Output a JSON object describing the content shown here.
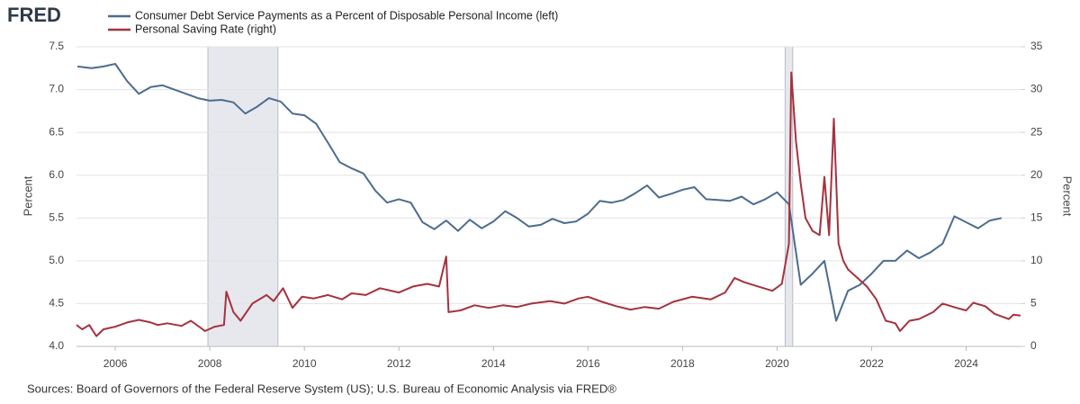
{
  "chart_data": {
    "type": "line",
    "logo": "FRED",
    "source": "Sources: Board of Governors of the Federal Reserve System (US); U.S. Bureau of Economic Analysis via FRED®",
    "y_label": "Percent",
    "y2_label": "Percent",
    "xlim": [
      2005.18,
      2025.17
    ],
    "xticks": [
      2006,
      2008,
      2010,
      2012,
      2014,
      2016,
      2018,
      2020,
      2022,
      2024
    ],
    "ylim": [
      4.0,
      7.5
    ],
    "yticks": [
      {
        "value": 4.0,
        "label": "4.0"
      },
      4.5,
      {
        "value": 5.0,
        "label": "5.0"
      },
      5.5,
      {
        "value": 6.0,
        "label": "6.0"
      },
      6.5,
      {
        "value": 7.0,
        "label": "7.0"
      },
      7.5
    ],
    "y2lim": [
      0,
      35
    ],
    "y2ticks": [
      0,
      5,
      10,
      15,
      20,
      25,
      30,
      35
    ],
    "grid": true,
    "recessions": [
      [
        2007.96,
        2009.44
      ],
      [
        2020.17,
        2020.33
      ]
    ],
    "recession_color": "#e6e8ee",
    "series": [
      {
        "name": "Consumer Debt Service Payments as a Percent of Disposable Personal Income (left)",
        "color": "#4d6c8f",
        "axis": "y",
        "x": [
          2005.2,
          2005.5,
          2005.75,
          2006.0,
          2006.25,
          2006.5,
          2006.75,
          2007.0,
          2007.25,
          2007.5,
          2007.75,
          2008.0,
          2008.25,
          2008.5,
          2008.75,
          2009.0,
          2009.25,
          2009.5,
          2009.75,
          2010.0,
          2010.25,
          2010.5,
          2010.75,
          2011.0,
          2011.25,
          2011.5,
          2011.75,
          2012.0,
          2012.25,
          2012.5,
          2012.75,
          2013.0,
          2013.25,
          2013.5,
          2013.75,
          2014.0,
          2014.25,
          2014.5,
          2014.75,
          2015.0,
          2015.25,
          2015.5,
          2015.75,
          2016.0,
          2016.25,
          2016.5,
          2016.75,
          2017.0,
          2017.25,
          2017.5,
          2017.75,
          2018.0,
          2018.25,
          2018.5,
          2018.75,
          2019.0,
          2019.25,
          2019.5,
          2019.75,
          2020.0,
          2020.25,
          2020.5,
          2020.75,
          2021.0,
          2021.25,
          2021.5,
          2021.75,
          2022.0,
          2022.25,
          2022.5,
          2022.75,
          2023.0,
          2023.25,
          2023.5,
          2023.75,
          2024.0,
          2024.25,
          2024.5,
          2024.75
        ],
        "values": [
          7.27,
          7.25,
          7.27,
          7.3,
          7.1,
          6.95,
          7.03,
          7.05,
          7.0,
          6.95,
          6.9,
          6.87,
          6.88,
          6.85,
          6.72,
          6.8,
          6.9,
          6.86,
          6.72,
          6.7,
          6.6,
          6.38,
          6.15,
          6.08,
          6.02,
          5.82,
          5.68,
          5.72,
          5.68,
          5.45,
          5.37,
          5.47,
          5.35,
          5.48,
          5.38,
          5.46,
          5.58,
          5.5,
          5.4,
          5.42,
          5.49,
          5.44,
          5.46,
          5.55,
          5.7,
          5.68,
          5.71,
          5.79,
          5.88,
          5.74,
          5.78,
          5.83,
          5.86,
          5.72,
          5.71,
          5.7,
          5.75,
          5.66,
          5.72,
          5.8,
          5.66,
          4.72,
          4.85,
          5.0,
          4.3,
          4.65,
          4.72,
          4.85,
          5.0,
          5.0,
          5.12,
          5.03,
          5.1,
          5.2,
          5.52,
          5.45,
          5.38,
          5.47,
          5.5
        ]
      },
      {
        "name": "Personal Saving Rate (right)",
        "color": "#a5323f",
        "axis": "y2",
        "x": [
          2005.18,
          2005.3,
          2005.45,
          2005.6,
          2005.75,
          2006.0,
          2006.25,
          2006.5,
          2006.75,
          2006.9,
          2007.1,
          2007.4,
          2007.6,
          2007.9,
          2008.1,
          2008.3,
          2008.35,
          2008.5,
          2008.65,
          2008.9,
          2009.2,
          2009.35,
          2009.55,
          2009.75,
          2009.95,
          2010.2,
          2010.5,
          2010.8,
          2011.0,
          2011.3,
          2011.6,
          2012.0,
          2012.3,
          2012.6,
          2012.85,
          2013.0,
          2013.05,
          2013.3,
          2013.6,
          2013.9,
          2014.2,
          2014.5,
          2014.8,
          2015.2,
          2015.5,
          2015.8,
          2016.0,
          2016.3,
          2016.6,
          2016.9,
          2017.2,
          2017.5,
          2017.8,
          2018.2,
          2018.6,
          2018.9,
          2019.1,
          2019.3,
          2019.6,
          2019.9,
          2020.1,
          2020.25,
          2020.3,
          2020.4,
          2020.5,
          2020.6,
          2020.75,
          2020.9,
          2021.0,
          2021.1,
          2021.2,
          2021.3,
          2021.4,
          2021.5,
          2021.7,
          2021.9,
          2022.1,
          2022.3,
          2022.5,
          2022.6,
          2022.8,
          2023.0,
          2023.3,
          2023.5,
          2023.8,
          2024.0,
          2024.15,
          2024.4,
          2024.6,
          2024.9,
          2025.0,
          2025.15
        ],
        "values": [
          2.5,
          2.0,
          2.5,
          1.2,
          2.0,
          2.3,
          2.8,
          3.1,
          2.8,
          2.5,
          2.7,
          2.4,
          3.0,
          1.8,
          2.3,
          2.5,
          6.4,
          4.0,
          3.0,
          5.0,
          6.0,
          5.3,
          6.8,
          4.5,
          5.8,
          5.6,
          6.0,
          5.5,
          6.2,
          6.0,
          6.8,
          6.3,
          7.0,
          7.3,
          7.0,
          10.5,
          4.0,
          4.2,
          4.8,
          4.5,
          4.8,
          4.6,
          5.0,
          5.3,
          5.0,
          5.6,
          5.8,
          5.2,
          4.7,
          4.3,
          4.6,
          4.4,
          5.2,
          5.8,
          5.5,
          6.3,
          8.0,
          7.5,
          7.0,
          6.5,
          7.3,
          12.0,
          32.0,
          24.0,
          19.0,
          15.0,
          13.5,
          13.0,
          19.8,
          13.0,
          26.6,
          12.0,
          10.0,
          9.0,
          8.0,
          7.0,
          5.5,
          3.0,
          2.7,
          1.8,
          3.0,
          3.2,
          4.0,
          5.0,
          4.5,
          4.2,
          5.1,
          4.7,
          3.8,
          3.2,
          3.7,
          3.6
        ]
      }
    ]
  }
}
